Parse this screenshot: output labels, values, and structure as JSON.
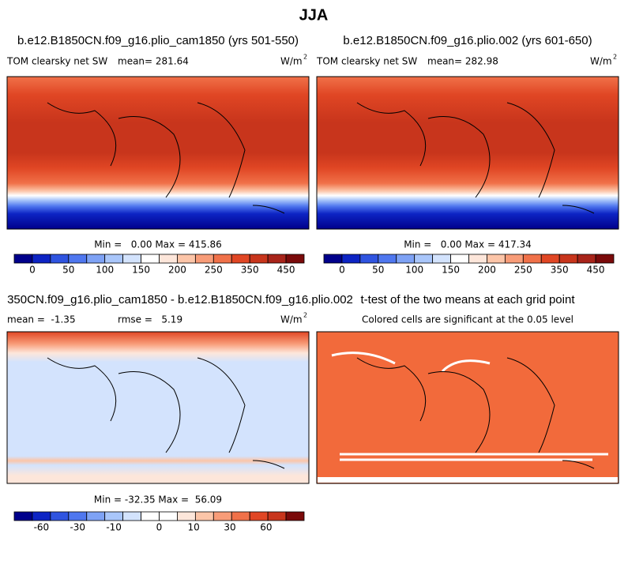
{
  "title": "JJA",
  "panels": [
    {
      "title": "b.e12.B1850CN.f09_g16.plio_cam1850 (yrs 501-550)",
      "left_label": "TOM clearsky net SW",
      "center_label": "mean= 281.64",
      "units": "W/m",
      "units_exp": "2",
      "stats": "Min =   0.00 Max = 415.86",
      "colorbar": {
        "colors": [
          "#00008b",
          "#0d24c4",
          "#2f54e0",
          "#4f77ef",
          "#7ea2f5",
          "#a9c6fa",
          "#d3e3fd",
          "#ffffff",
          "#fde6da",
          "#fcc5a8",
          "#f89c78",
          "#f07149",
          "#e04624",
          "#c8351c",
          "#a8241a",
          "#7a0a0a"
        ],
        "labels": [
          0,
          50,
          100,
          150,
          200,
          250,
          350,
          450
        ]
      }
    },
    {
      "title": "b.e12.B1850CN.f09_g16.plio.002 (yrs 601-650)",
      "left_label": "TOM clearsky net SW",
      "center_label": "mean= 282.98",
      "units": "W/m",
      "units_exp": "2",
      "stats": "Min =   0.00 Max = 417.34",
      "colorbar": {
        "colors": [
          "#00008b",
          "#0d24c4",
          "#2f54e0",
          "#4f77ef",
          "#7ea2f5",
          "#a9c6fa",
          "#d3e3fd",
          "#ffffff",
          "#fde6da",
          "#fcc5a8",
          "#f89c78",
          "#f07149",
          "#e04624",
          "#c8351c",
          "#a8241a",
          "#7a0a0a"
        ],
        "labels": [
          0,
          50,
          100,
          150,
          200,
          250,
          350,
          450
        ]
      }
    },
    {
      "title": "350CN.f09_g16.plio_cam1850 - b.e12.B1850CN.f09_g16.plio.002",
      "left_label": "mean =  -1.35",
      "center_label": "rmse =   5.19",
      "units": "W/m",
      "units_exp": "2",
      "stats": "Min = -32.35 Max =  56.09",
      "colorbar": {
        "colors": [
          "#00008b",
          "#0d24c4",
          "#2f54e0",
          "#4f77ef",
          "#7ea2f5",
          "#a9c6fa",
          "#d3e3fd",
          "#ffffff",
          "#ffffff",
          "#fde6da",
          "#fcc5a8",
          "#f89c78",
          "#f07149",
          "#e04624",
          "#c8351c",
          "#7a0a0a"
        ],
        "labels": [
          -60,
          -30,
          -10,
          0,
          10,
          30,
          60
        ]
      }
    },
    {
      "title": "t-test of the two means at each grid point",
      "subtitle": "Colored cells are significant at the 0.05 level"
    }
  ]
}
